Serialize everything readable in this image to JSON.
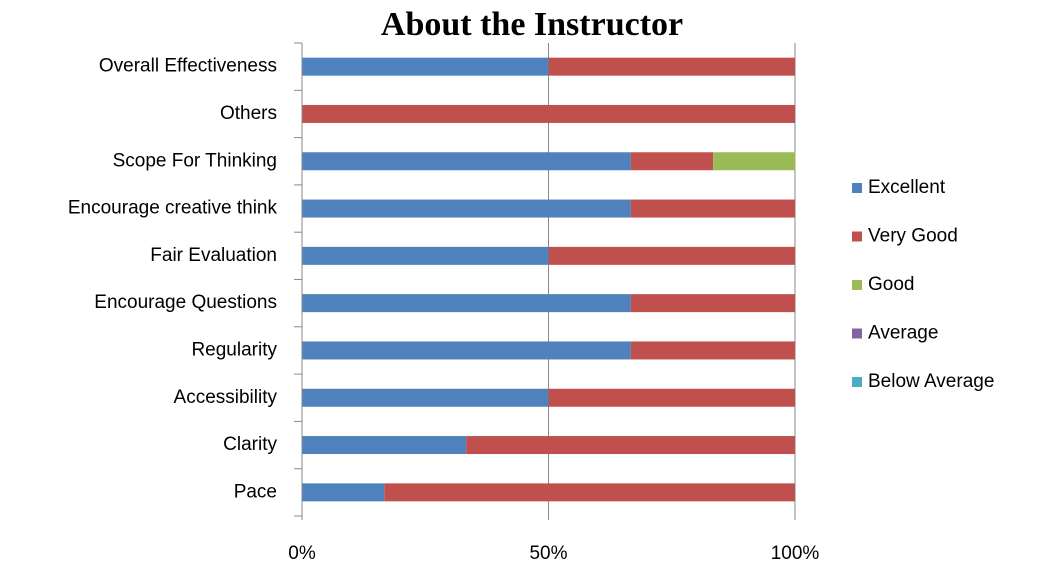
{
  "chart_data": {
    "type": "stacked_barh",
    "title": "About the Instructor",
    "categories": [
      "Overall Effectiveness",
      "Others",
      "Scope For Thinking",
      "Encourage creative think",
      "Fair Evaluation",
      "Encourage Questions",
      "Regularity",
      "Accessibility",
      "Clarity",
      "Pace"
    ],
    "series": [
      {
        "name": "Excellent",
        "color": "#4f81bd",
        "values": [
          50,
          0,
          66.7,
          66.7,
          50,
          66.7,
          66.7,
          50,
          33.3,
          16.7
        ]
      },
      {
        "name": "Very Good",
        "color": "#c0504d",
        "values": [
          50,
          100,
          16.7,
          33.3,
          50,
          33.3,
          33.3,
          50,
          66.7,
          83.3
        ]
      },
      {
        "name": "Good",
        "color": "#9bbb59",
        "values": [
          0,
          0,
          16.7,
          0,
          0,
          0,
          0,
          0,
          0,
          0
        ]
      },
      {
        "name": "Average",
        "color": "#8064a2",
        "values": [
          0,
          0,
          0,
          0,
          0,
          0,
          0,
          0,
          0,
          0
        ]
      },
      {
        "name": "Below Average",
        "color": "#4bacc6",
        "values": [
          0,
          0,
          0,
          0,
          0,
          0,
          0,
          0,
          0,
          0
        ]
      }
    ],
    "xlim": [
      0,
      100
    ],
    "xticks": [
      {
        "value": 0,
        "label": "0%"
      },
      {
        "value": 50,
        "label": "50%"
      },
      {
        "value": 100,
        "label": "100%"
      }
    ],
    "grid": true,
    "legend": "right"
  }
}
